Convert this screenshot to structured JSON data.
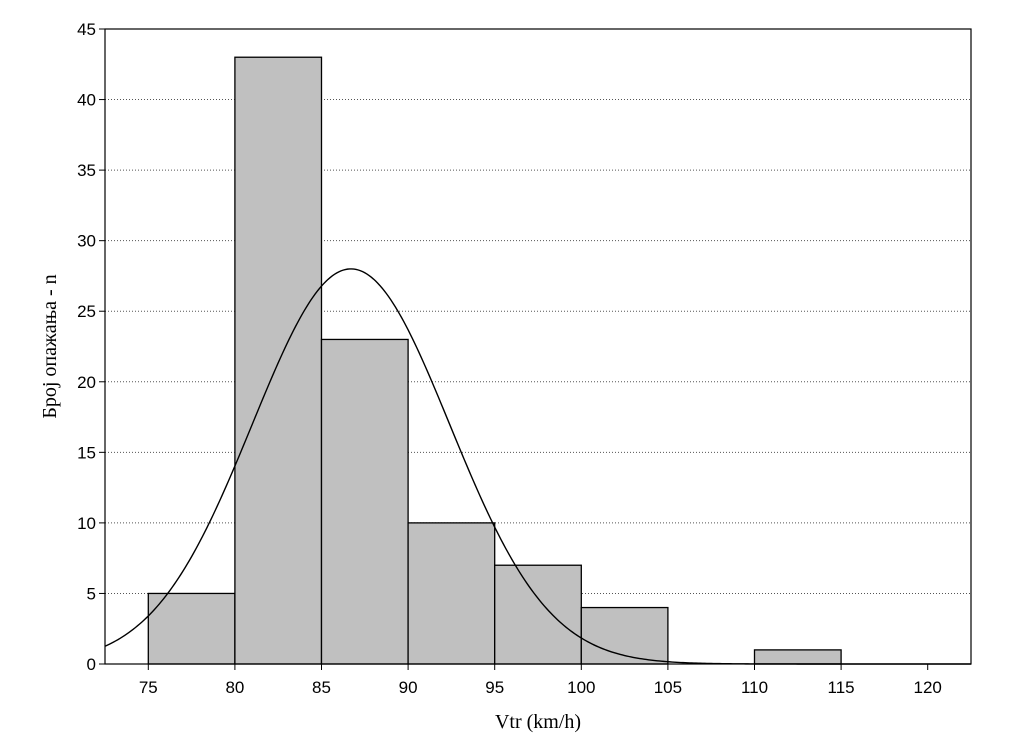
{
  "chart_data": {
    "type": "bar",
    "subtype": "histogram",
    "xlabel": "Vtr (km/h)",
    "ylabel": "Број опажања - n",
    "xlim": [
      72.5,
      122.5
    ],
    "ylim": [
      0,
      45
    ],
    "x_ticks": [
      "75",
      "80",
      "85",
      "90",
      "95",
      "100",
      "105",
      "110",
      "115",
      "120"
    ],
    "y_ticks": [
      "0",
      "5",
      "10",
      "15",
      "20",
      "25",
      "30",
      "35",
      "40",
      "45"
    ],
    "bins": [
      {
        "from": 75,
        "to": 80,
        "count": 5
      },
      {
        "from": 80,
        "to": 85,
        "count": 43
      },
      {
        "from": 85,
        "to": 90,
        "count": 23
      },
      {
        "from": 90,
        "to": 95,
        "count": 10
      },
      {
        "from": 95,
        "to": 100,
        "count": 7
      },
      {
        "from": 100,
        "to": 105,
        "count": 4
      },
      {
        "from": 105,
        "to": 110,
        "count": 0
      },
      {
        "from": 110,
        "to": 115,
        "count": 1
      }
    ],
    "fitted_curve": {
      "type": "normal",
      "peak_x": 86.7,
      "peak_y": 28,
      "sigma": 5.7
    },
    "grid": true,
    "bar_color": "#c0c0c0",
    "line_color": "#000000"
  }
}
